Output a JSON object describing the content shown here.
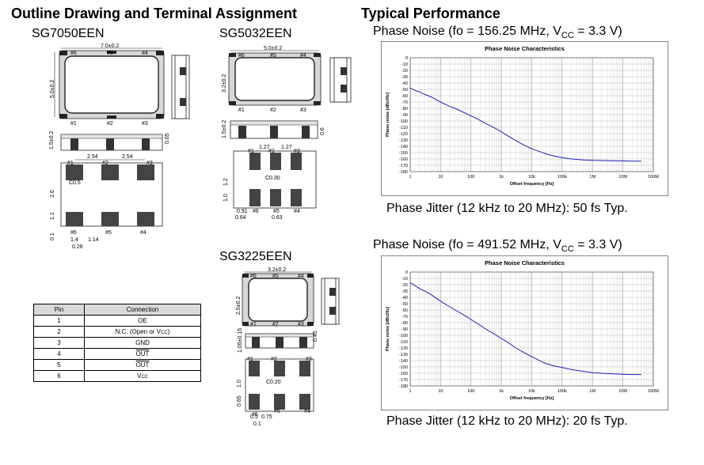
{
  "left_heading": "Outline Drawing and Terminal Assignment",
  "right_heading": "Typical Performance",
  "packages": {
    "p7050": {
      "name": "SG7050EEN",
      "dims": {
        "top_width": "7.0±0.2",
        "top_height": "5.0±0.2",
        "side_height": "1.5±0.2",
        "side_pad": "0.65",
        "pitch1": "2.54",
        "pitch2": "2.54",
        "chamfer": "C0.5",
        "d_26": "2.6",
        "d_11": "1.1",
        "d_01": "0.1",
        "d_14": "1.4",
        "d_114": "1.14",
        "d_026": "0.26"
      },
      "pins": {
        "p6": "#6",
        "p5": "#5",
        "p4": "#4",
        "p1": "#1",
        "p2": "#2",
        "p3": "#3"
      }
    },
    "p5032": {
      "name": "SG5032EEN",
      "dims": {
        "top_width": "5.0±0.2",
        "top_height": "3.2±0.2",
        "side_height": "1.5±0.2",
        "side_pad": "0.6",
        "pitch1": "1.27",
        "pitch2": "1.27",
        "chamfer": "C0.30",
        "d_12": "1.2",
        "d_10": "1.0",
        "d_091": "0.91",
        "d_064": "0.64",
        "d_063": "0.63"
      },
      "pins": {
        "p6": "#6",
        "p5": "#5",
        "p4": "#4",
        "p1": "#1",
        "p2": "#2",
        "p3": "#3"
      }
    },
    "p3225": {
      "name": "SG3225EEN",
      "dims": {
        "top_width": "3.2±0.2",
        "top_height": "2.5±0.2",
        "side_height": "1.05±0.15",
        "side_pad": "0.45",
        "chamfer": "C0.20",
        "d_10": "1.0",
        "d_065": "0.65",
        "d_05": "0.5",
        "d_075": "0.75",
        "d_01": "0.1"
      },
      "pins": {
        "p6": "#6",
        "p5": "#5",
        "p4": "#4",
        "p1": "#1",
        "p2": "#2",
        "p3": "#3"
      }
    }
  },
  "pin_table": {
    "headers": [
      "Pin",
      "Connection"
    ],
    "rows": [
      {
        "pin": "1",
        "conn": "OE",
        "conn_sub": "",
        "conn_tail": "",
        "overline": false
      },
      {
        "pin": "2",
        "conn": "N.C. (Open or V",
        "conn_sub": "CC",
        "conn_tail": ")",
        "overline": false
      },
      {
        "pin": "3",
        "conn": "GND",
        "conn_sub": "",
        "conn_tail": "",
        "overline": false
      },
      {
        "pin": "4",
        "conn": "OUT",
        "conn_sub": "",
        "conn_tail": "",
        "overline": true
      },
      {
        "pin": "5",
        "conn": "OUT",
        "conn_sub": "",
        "conn_tail": "",
        "overline": true
      },
      {
        "pin": "6",
        "conn": "V",
        "conn_sub": "CC",
        "conn_tail": "",
        "overline": false
      }
    ]
  },
  "charts": [
    {
      "caption_pre": "Phase Noise (fo = 156.25 MHz, V",
      "caption_sub": "CC",
      "caption_post": " = 3.3 V)",
      "jitter_text": "Phase Jitter (12 kHz to 20 MHz): 50 fs Typ."
    },
    {
      "caption_pre": "Phase Noise (fo = 491.52 MHz, V",
      "caption_sub": "CC",
      "caption_post": " = 3.3 V)",
      "jitter_text": "Phase Jitter (12 kHz to 20 MHz): 20 fs Typ."
    }
  ],
  "chart_data": [
    {
      "type": "line",
      "title": "Phase Noise Characteristics",
      "xlabel": "Offset frequency [Hz]",
      "ylabel": "Phase noise [dBc/Hz]",
      "xscale": "log",
      "xlim": [
        1,
        100000000
      ],
      "ylim": [
        -180,
        0
      ],
      "xticks": [
        1,
        10,
        100,
        1000,
        10000,
        100000,
        1000000,
        10000000,
        100000000
      ],
      "xtick_labels": [
        "1",
        "10",
        "100",
        "1k",
        "10k",
        "100k",
        "1M",
        "10M",
        "100M"
      ],
      "yticks": [
        0,
        -10,
        -20,
        -30,
        -40,
        -50,
        -60,
        -70,
        -80,
        -90,
        -100,
        -110,
        -120,
        -130,
        -140,
        -150,
        -160,
        -170,
        -180
      ],
      "grid": true,
      "color": "#1f1fb4",
      "series": [
        {
          "x": [
            1,
            1.5,
            2,
            3,
            5,
            7,
            10,
            20,
            30,
            50,
            100,
            200,
            300,
            500,
            1000,
            2000,
            3000,
            5000,
            10000,
            20000,
            30000,
            50000,
            100000,
            200000,
            500000,
            1000000,
            2000000,
            5000000,
            10000000,
            20000000,
            40000000
          ],
          "y": [
            -48,
            -52,
            -54,
            -58,
            -62,
            -66,
            -70,
            -77,
            -80,
            -85,
            -92,
            -99,
            -104,
            -109,
            -117,
            -126,
            -131,
            -137,
            -144,
            -149,
            -152,
            -155,
            -158,
            -160,
            -161.5,
            -162,
            -162.5,
            -163,
            -163,
            -163.5,
            -163.5
          ]
        }
      ]
    },
    {
      "type": "line",
      "title": "Phase Noise Characteristics",
      "xlabel": "Offset frequency [Hz]",
      "ylabel": "Phase noise [dBc/Hz]",
      "xscale": "log",
      "xlim": [
        1,
        100000000
      ],
      "ylim": [
        -180,
        0
      ],
      "xticks": [
        1,
        10,
        100,
        1000,
        10000,
        100000,
        1000000,
        10000000,
        100000000
      ],
      "xtick_labels": [
        "1",
        "10",
        "100",
        "1k",
        "10k",
        "100k",
        "1M",
        "10M",
        "100M"
      ],
      "yticks": [
        0,
        -10,
        -20,
        -30,
        -40,
        -50,
        -60,
        -70,
        -80,
        -90,
        -100,
        -110,
        -120,
        -130,
        -140,
        -150,
        -160,
        -170,
        -180
      ],
      "grid": true,
      "color": "#1f1fb4",
      "series": [
        {
          "x": [
            1,
            1.5,
            2,
            3,
            5,
            7,
            10,
            20,
            30,
            50,
            100,
            200,
            300,
            500,
            1000,
            2000,
            3000,
            5000,
            10000,
            20000,
            30000,
            50000,
            100000,
            200000,
            500000,
            1000000,
            2000000,
            5000000,
            10000000,
            20000000,
            40000000
          ],
          "y": [
            -17,
            -22,
            -26,
            -30,
            -36,
            -41,
            -46,
            -55,
            -60,
            -66,
            -75,
            -84,
            -90,
            -96,
            -105,
            -114,
            -120,
            -126,
            -134,
            -141,
            -145,
            -148,
            -151,
            -154,
            -157,
            -159,
            -160,
            -161,
            -161.5,
            -162,
            -162
          ]
        }
      ]
    }
  ]
}
